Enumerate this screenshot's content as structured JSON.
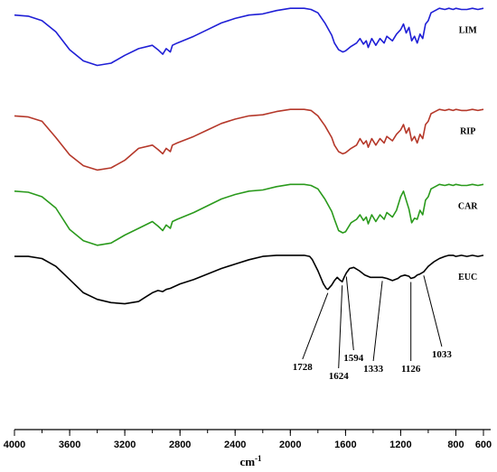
{
  "chart_data": {
    "type": "line",
    "xlabel": "cm-1",
    "xlim": [
      4000,
      600
    ],
    "x_reversed": true,
    "x_ticks": [
      4000,
      3600,
      3200,
      2800,
      2400,
      2000,
      1600,
      1200,
      800,
      600
    ],
    "tick_labels": [
      "4000",
      "3600",
      "3200",
      "2800",
      "2400",
      "2000",
      "1600",
      "1200",
      "800",
      "600"
    ],
    "y_axis_shown": false,
    "grid": false,
    "legend": "none",
    "series": [
      {
        "name": "LIM",
        "color": "#1f1fd6",
        "x": [
          4000,
          3900,
          3800,
          3700,
          3600,
          3500,
          3400,
          3300,
          3200,
          3100,
          3000,
          2960,
          2925,
          2900,
          2870,
          2855,
          2820,
          2780,
          2700,
          2600,
          2500,
          2400,
          2300,
          2200,
          2100,
          2000,
          1900,
          1850,
          1800,
          1750,
          1700,
          1680,
          1650,
          1620,
          1600,
          1560,
          1520,
          1495,
          1470,
          1450,
          1435,
          1410,
          1380,
          1350,
          1320,
          1300,
          1260,
          1230,
          1200,
          1180,
          1160,
          1140,
          1120,
          1100,
          1080,
          1060,
          1040,
          1020,
          1000,
          980,
          950,
          920,
          880,
          850,
          820,
          800,
          760,
          720,
          680,
          640,
          600
        ],
        "y": [
          0.93,
          0.92,
          0.88,
          0.78,
          0.62,
          0.52,
          0.48,
          0.5,
          0.57,
          0.63,
          0.66,
          0.62,
          0.58,
          0.63,
          0.6,
          0.66,
          0.68,
          0.7,
          0.74,
          0.8,
          0.86,
          0.9,
          0.93,
          0.94,
          0.97,
          0.99,
          0.99,
          0.98,
          0.95,
          0.86,
          0.75,
          0.68,
          0.62,
          0.6,
          0.61,
          0.65,
          0.68,
          0.72,
          0.67,
          0.7,
          0.64,
          0.72,
          0.66,
          0.72,
          0.68,
          0.74,
          0.7,
          0.76,
          0.8,
          0.85,
          0.77,
          0.82,
          0.7,
          0.74,
          0.68,
          0.76,
          0.72,
          0.85,
          0.88,
          0.95,
          0.97,
          0.99,
          0.98,
          0.99,
          0.98,
          0.99,
          0.98,
          0.98,
          0.99,
          0.98,
          0.99
        ],
        "label_wavenumber": 700
      },
      {
        "name": "RIP",
        "color": "#b5382a",
        "x": [
          4000,
          3900,
          3800,
          3700,
          3600,
          3500,
          3400,
          3300,
          3200,
          3100,
          3000,
          2960,
          2925,
          2900,
          2870,
          2855,
          2820,
          2780,
          2700,
          2600,
          2500,
          2400,
          2300,
          2200,
          2100,
          2000,
          1900,
          1850,
          1800,
          1750,
          1700,
          1680,
          1650,
          1620,
          1600,
          1560,
          1520,
          1495,
          1470,
          1450,
          1435,
          1410,
          1380,
          1350,
          1320,
          1300,
          1260,
          1230,
          1200,
          1180,
          1160,
          1140,
          1120,
          1100,
          1080,
          1060,
          1040,
          1020,
          1000,
          980,
          950,
          920,
          880,
          850,
          820,
          800,
          760,
          720,
          680,
          640,
          600
        ],
        "y": [
          0.93,
          0.92,
          0.88,
          0.78,
          0.62,
          0.52,
          0.48,
          0.5,
          0.57,
          0.63,
          0.66,
          0.62,
          0.58,
          0.63,
          0.6,
          0.66,
          0.68,
          0.7,
          0.74,
          0.8,
          0.86,
          0.9,
          0.93,
          0.94,
          0.97,
          0.99,
          0.99,
          0.98,
          0.95,
          0.86,
          0.75,
          0.68,
          0.62,
          0.6,
          0.61,
          0.65,
          0.68,
          0.72,
          0.67,
          0.7,
          0.64,
          0.72,
          0.66,
          0.72,
          0.68,
          0.74,
          0.7,
          0.76,
          0.8,
          0.85,
          0.77,
          0.82,
          0.7,
          0.74,
          0.68,
          0.76,
          0.72,
          0.85,
          0.88,
          0.95,
          0.97,
          0.99,
          0.98,
          0.99,
          0.98,
          0.99,
          0.98,
          0.98,
          0.99,
          0.98,
          0.99
        ],
        "label_wavenumber": 700
      },
      {
        "name": "CAR",
        "color": "#2a9a1c",
        "x": [
          4000,
          3900,
          3800,
          3700,
          3600,
          3500,
          3400,
          3300,
          3200,
          3100,
          3000,
          2960,
          2925,
          2900,
          2870,
          2855,
          2820,
          2780,
          2700,
          2600,
          2500,
          2400,
          2300,
          2200,
          2100,
          2000,
          1900,
          1850,
          1800,
          1750,
          1700,
          1680,
          1650,
          1620,
          1600,
          1560,
          1520,
          1495,
          1470,
          1450,
          1435,
          1410,
          1380,
          1350,
          1320,
          1300,
          1260,
          1230,
          1200,
          1180,
          1160,
          1140,
          1120,
          1100,
          1080,
          1060,
          1040,
          1020,
          1000,
          980,
          950,
          920,
          880,
          850,
          820,
          800,
          760,
          720,
          680,
          640,
          600
        ],
        "y": [
          0.93,
          0.92,
          0.88,
          0.78,
          0.62,
          0.52,
          0.48,
          0.5,
          0.57,
          0.63,
          0.66,
          0.62,
          0.58,
          0.63,
          0.6,
          0.66,
          0.68,
          0.7,
          0.74,
          0.8,
          0.86,
          0.9,
          0.93,
          0.94,
          0.97,
          0.99,
          0.99,
          0.98,
          0.95,
          0.86,
          0.75,
          0.68,
          0.62,
          0.6,
          0.61,
          0.65,
          0.68,
          0.72,
          0.67,
          0.7,
          0.64,
          0.72,
          0.66,
          0.72,
          0.68,
          0.74,
          0.7,
          0.76,
          0.8,
          0.85,
          0.77,
          0.82,
          0.7,
          0.74,
          0.68,
          0.76,
          0.72,
          0.85,
          0.88,
          0.95,
          0.97,
          0.99,
          0.98,
          0.99,
          0.98,
          0.99,
          0.98,
          0.98,
          0.99,
          0.98,
          0.99
        ],
        "label_wavenumber": 700
      },
      {
        "name": "EUC",
        "color": "#000000",
        "x": [
          4000,
          3900,
          3800,
          3700,
          3600,
          3500,
          3400,
          3300,
          3200,
          3100,
          3050,
          3000,
          2960,
          2925,
          2900,
          2870,
          2800,
          2700,
          2600,
          2500,
          2400,
          2300,
          2200,
          2100,
          2000,
          1900,
          1860,
          1840,
          1800,
          1760,
          1740,
          1728,
          1700,
          1680,
          1660,
          1645,
          1624,
          1610,
          1594,
          1570,
          1540,
          1500,
          1460,
          1420,
          1380,
          1333,
          1300,
          1260,
          1220,
          1200,
          1170,
          1140,
          1126,
          1100,
          1080,
          1060,
          1033,
          1000,
          960,
          920,
          880,
          850,
          820,
          800,
          760,
          720,
          680,
          640,
          600
        ],
        "y": [
          0.95,
          0.95,
          0.93,
          0.86,
          0.74,
          0.62,
          0.56,
          0.53,
          0.52,
          0.54,
          0.58,
          0.62,
          0.64,
          0.63,
          0.65,
          0.66,
          0.7,
          0.74,
          0.79,
          0.84,
          0.88,
          0.92,
          0.95,
          0.96,
          0.96,
          0.96,
          0.95,
          0.92,
          0.82,
          0.7,
          0.66,
          0.65,
          0.69,
          0.73,
          0.76,
          0.74,
          0.72,
          0.76,
          0.8,
          0.84,
          0.85,
          0.82,
          0.78,
          0.76,
          0.76,
          0.76,
          0.75,
          0.73,
          0.75,
          0.77,
          0.78,
          0.77,
          0.75,
          0.76,
          0.78,
          0.79,
          0.81,
          0.86,
          0.9,
          0.93,
          0.95,
          0.96,
          0.96,
          0.95,
          0.96,
          0.95,
          0.96,
          0.95,
          0.96
        ],
        "label_wavenumber": 700
      }
    ],
    "annotations": [
      {
        "label": "1728",
        "x": 1728,
        "series": "EUC"
      },
      {
        "label": "1624",
        "x": 1624,
        "series": "EUC"
      },
      {
        "label": "1594",
        "x": 1594,
        "series": "EUC"
      },
      {
        "label": "1333",
        "x": 1333,
        "series": "EUC"
      },
      {
        "label": "1126",
        "x": 1126,
        "series": "EUC"
      },
      {
        "label": "1033",
        "x": 1033,
        "series": "EUC"
      }
    ]
  }
}
